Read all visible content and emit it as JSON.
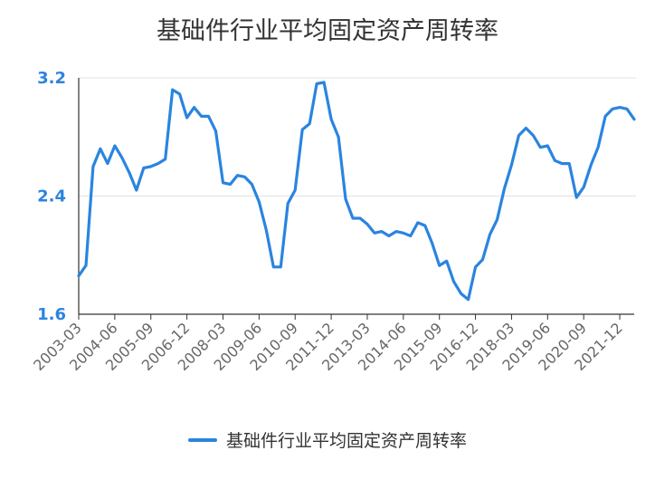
{
  "chart_data": {
    "type": "line",
    "title": "基础件行业平均固定资产周转率",
    "xlabel": "",
    "ylabel": "",
    "ylim": [
      1.6,
      3.2
    ],
    "yticks": [
      "1.6",
      "2.4",
      "3.2"
    ],
    "grid": true,
    "legend_position": "bottom",
    "colors": {
      "series": "#2a84e0",
      "ytick": "#2a84e0",
      "grid": "#e2e2e2",
      "axis": "#333333"
    },
    "x_tick_labels": [
      "2003-03",
      "2004-06",
      "2005-09",
      "2006-12",
      "2008-03",
      "2009-06",
      "2010-09",
      "2011-12",
      "2013-03",
      "2014-06",
      "2015-09",
      "2016-12",
      "2018-03",
      "2019-06",
      "2020-09",
      "2021-12"
    ],
    "series": [
      {
        "name": "基础件行业平均固定资产周转率",
        "values": [
          1.86,
          1.93,
          2.6,
          2.72,
          2.62,
          2.74,
          2.66,
          2.56,
          2.44,
          2.59,
          2.6,
          2.62,
          2.65,
          3.12,
          3.09,
          2.93,
          3.0,
          2.94,
          2.94,
          2.84,
          2.49,
          2.48,
          2.54,
          2.53,
          2.48,
          2.36,
          2.17,
          1.92,
          1.92,
          2.35,
          2.44,
          2.85,
          2.89,
          3.16,
          3.17,
          2.92,
          2.8,
          2.38,
          2.25,
          2.25,
          2.21,
          2.15,
          2.16,
          2.13,
          2.16,
          2.15,
          2.13,
          2.22,
          2.2,
          2.08,
          1.93,
          1.96,
          1.82,
          1.74,
          1.7,
          1.92,
          1.97,
          2.14,
          2.24,
          2.45,
          2.61,
          2.81,
          2.86,
          2.81,
          2.73,
          2.74,
          2.64,
          2.62,
          2.62,
          2.39,
          2.46,
          2.61,
          2.73,
          2.94,
          2.99,
          3.0,
          2.99,
          2.92
        ]
      }
    ]
  }
}
